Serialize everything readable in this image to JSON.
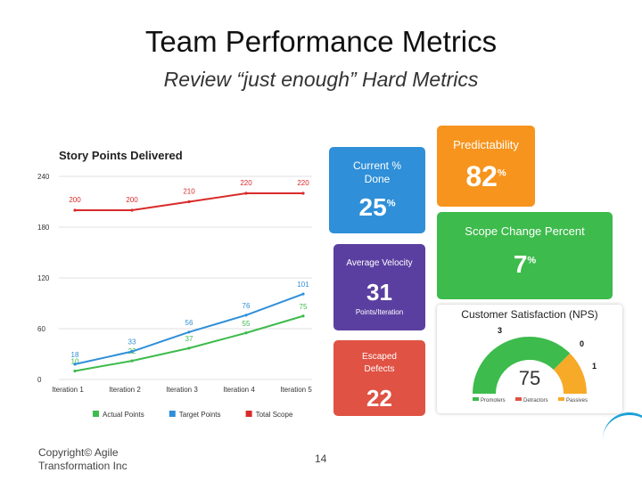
{
  "slide": {
    "title": "Team Performance Metrics",
    "subtitle": "Review “just enough” Hard Metrics"
  },
  "tiles": {
    "current_done": {
      "label_line1": "Current %",
      "label_line2": "Done",
      "value": "25",
      "unit": "%",
      "color": "#2f8fd8"
    },
    "predictability": {
      "label": "Predictability",
      "value": "82",
      "unit": "%",
      "color": "#f7941d"
    },
    "scope_change": {
      "label": "Scope Change Percent",
      "value": "7",
      "unit": "%",
      "color": "#3dbb4c"
    },
    "velocity": {
      "label": "Average Velocity",
      "value": "31",
      "sublabel": "Points/Iteration",
      "color": "#5b3fa0"
    },
    "defects": {
      "label_line1": "Escaped",
      "label_line2": "Defects",
      "value": "22",
      "color": "#e05244"
    }
  },
  "nps": {
    "title": "Customer Satisfaction (NPS)",
    "score": "75",
    "promoters": "3",
    "detractors": "0",
    "passives": "1",
    "legend": [
      "Promoters",
      "Detractors",
      "Passives"
    ],
    "colors": {
      "promoters": "#3dbb4c",
      "detractors": "#e05244",
      "passives": "#f7a928"
    },
    "fractions": {
      "promoters": 0.75,
      "detractors": 0.0,
      "passives": 0.25
    }
  },
  "chart_data": {
    "type": "line",
    "title": "Story Points Delivered",
    "categories": [
      "Iteration 1",
      "Iteration 2",
      "Iteration 3",
      "Iteration 4",
      "Iteration 5"
    ],
    "ylim": [
      0,
      240
    ],
    "yticks": [
      "0",
      "60",
      "120",
      "180",
      "240"
    ],
    "grid": true,
    "legend_position": "bottom",
    "series": [
      {
        "name": "Actual Points",
        "color": "#3dbb4c",
        "values": [
          10,
          22,
          37,
          55,
          75
        ]
      },
      {
        "name": "Target Points",
        "color": "#2f8fd8",
        "values": [
          18,
          33,
          56,
          76,
          101
        ]
      },
      {
        "name": "Total Scope",
        "color": "#d92b2b",
        "values": [
          200,
          200,
          210,
          220,
          220
        ]
      }
    ]
  },
  "footer": {
    "copyright_line1": "Copyright© Agile",
    "copyright_line2": "Transformation Inc",
    "page_number": "14"
  }
}
